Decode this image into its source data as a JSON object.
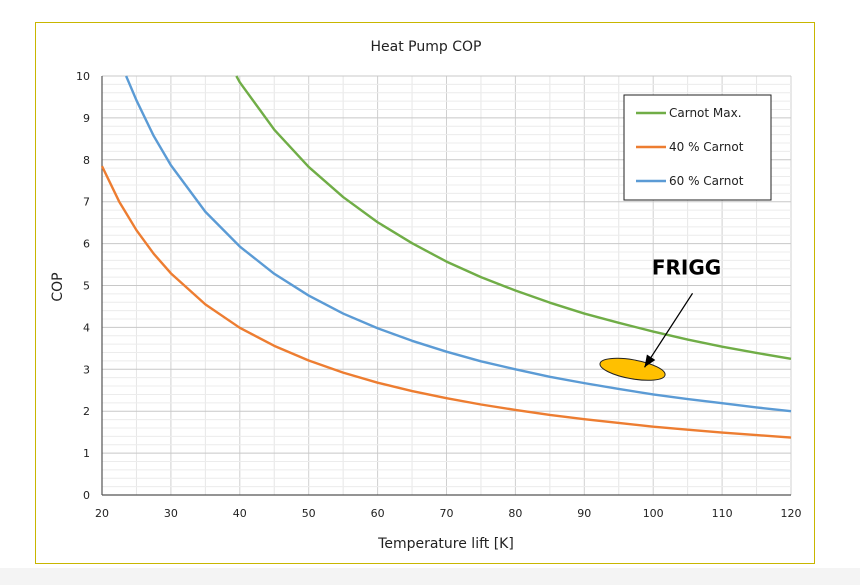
{
  "chart_data": {
    "type": "line",
    "title": "Heat Pump COP",
    "xlabel": "Temperature lift [K]",
    "ylabel": "COP",
    "xlim": [
      20,
      120
    ],
    "ylim": [
      0,
      10
    ],
    "x_ticks": [
      20,
      30,
      40,
      50,
      60,
      70,
      80,
      90,
      100,
      110,
      120
    ],
    "y_ticks": [
      0,
      1,
      2,
      3,
      4,
      5,
      6,
      7,
      8,
      9,
      10
    ],
    "grid": true,
    "legend_position": "top-right",
    "series": [
      {
        "name": "Carnot Max.",
        "color": "#70ad47",
        "x": [
          39.5,
          40,
          45,
          50,
          55,
          60,
          65,
          70,
          75,
          80,
          85,
          90,
          95,
          100,
          105,
          110,
          115,
          120
        ],
        "y": [
          10.0,
          9.85,
          8.72,
          7.83,
          7.11,
          6.51,
          6.01,
          5.57,
          5.2,
          4.88,
          4.59,
          4.33,
          4.11,
          3.9,
          3.71,
          3.54,
          3.39,
          3.25
        ]
      },
      {
        "name": "40 % Carnot",
        "color": "#ed7d31",
        "x": [
          20,
          22.5,
          25,
          27.5,
          30,
          35,
          40,
          45,
          50,
          55,
          60,
          65,
          70,
          75,
          80,
          85,
          90,
          95,
          100,
          105,
          110,
          115,
          120
        ],
        "y": [
          7.85,
          7.0,
          6.32,
          5.76,
          5.29,
          4.55,
          3.99,
          3.56,
          3.21,
          2.92,
          2.68,
          2.48,
          2.31,
          2.16,
          2.03,
          1.91,
          1.81,
          1.72,
          1.63,
          1.56,
          1.49,
          1.43,
          1.37
        ]
      },
      {
        "name": "60 % Carnot",
        "color": "#5b9bd5",
        "x": [
          23.5,
          25,
          27.5,
          30,
          35,
          40,
          45,
          50,
          55,
          60,
          65,
          70,
          75,
          80,
          85,
          90,
          95,
          100,
          105,
          110,
          115,
          120
        ],
        "y": [
          10.0,
          9.42,
          8.57,
          7.87,
          6.76,
          5.93,
          5.28,
          4.76,
          4.33,
          3.98,
          3.68,
          3.42,
          3.19,
          3.0,
          2.82,
          2.67,
          2.53,
          2.4,
          2.29,
          2.19,
          2.09,
          2.0
        ]
      }
    ],
    "annotations": [
      {
        "text": "FRIGG",
        "target_x": 97,
        "target_y": 3.0,
        "marker_color": "#ffc000"
      }
    ]
  }
}
